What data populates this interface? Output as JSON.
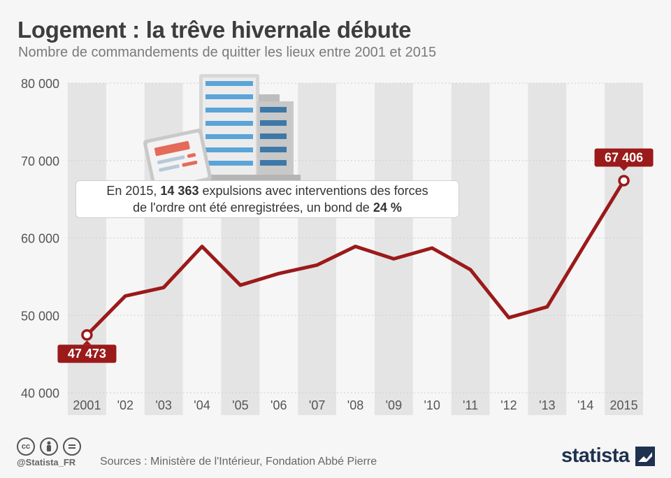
{
  "title": "Logement : la trêve hivernale débute",
  "subtitle": "Nombre de commandements de quitter les lieux entre 2001 et 2015",
  "callout": {
    "part1": "En 2015, ",
    "bold1": "14 363",
    "part2": " expulsions avec interventions des forces",
    "part3": "de l'ordre ont été enregistrées, un bond de ",
    "bold2": "24 %"
  },
  "footer": {
    "handle": "@Statista_FR",
    "sources": "Sources : Ministère de l'Intérieur, Fondation Abbé Pierre",
    "brand": "statista",
    "license_icons": [
      "cc-icon",
      "by-icon",
      "nd-icon"
    ]
  },
  "colors": {
    "line": "#9b1a1a",
    "label_bg": "#9b1a1a",
    "band": "#e4e4e4",
    "background": "#f6f6f6"
  },
  "chart_data": {
    "type": "line",
    "categories": [
      "2001",
      "'02",
      "'03",
      "'04",
      "'05",
      "'06",
      "'07",
      "'08",
      "'09",
      "'10",
      "'11",
      "'12",
      "'13",
      "'14",
      "2015"
    ],
    "values": [
      47473,
      52500,
      53600,
      58900,
      53900,
      55400,
      56500,
      58900,
      57300,
      58700,
      55900,
      49700,
      51100,
      59300,
      67406
    ],
    "ylim": [
      40000,
      80000
    ],
    "yticks": [
      40000,
      50000,
      60000,
      70000,
      80000
    ],
    "ytick_labels": [
      "40 000",
      "50 000",
      "60 000",
      "70 000",
      "80 000"
    ],
    "data_labels": [
      {
        "index": 0,
        "text": "47 473"
      },
      {
        "index": 14,
        "text": "67 406"
      }
    ],
    "grid": true,
    "xlabel": "",
    "ylabel": ""
  }
}
